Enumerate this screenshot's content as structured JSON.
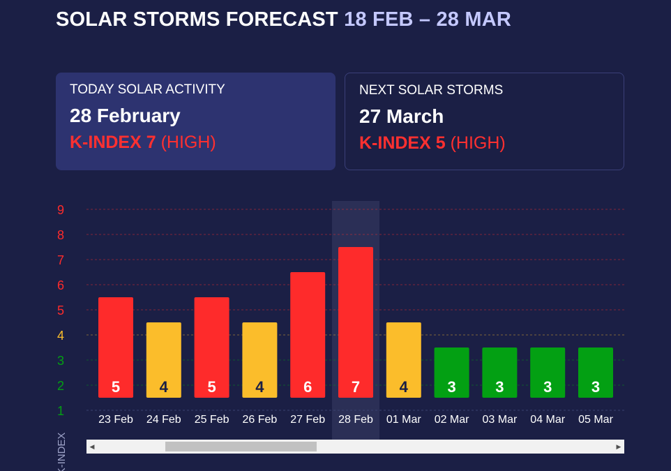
{
  "header": {
    "title": "SOLAR STORMS FORECAST",
    "range": "18 FEB – 28 MAR"
  },
  "today": {
    "label": "TODAY SOLAR ACTIVITY",
    "date": "28 February",
    "kindex": "K-INDEX 7",
    "level": "(HIGH)"
  },
  "next": {
    "label": "NEXT SOLAR STORMS",
    "date": "27 March",
    "kindex": "K-INDEX 5",
    "level": "(HIGH)"
  },
  "colors": {
    "high": "#fe2b2b",
    "moderate": "#fbbd2b",
    "low": "#03a013",
    "background": "#1b1f45",
    "highlight": "#2b2f56"
  },
  "chart_data": {
    "type": "bar",
    "ylabel": "K-INDEX",
    "ylim": [
      1,
      9
    ],
    "yticks": [
      1,
      2,
      3,
      4,
      5,
      6,
      7,
      8,
      9
    ],
    "grid": true,
    "highlighted_category": "28 Feb",
    "categories": [
      "23 Feb",
      "24 Feb",
      "25 Feb",
      "26 Feb",
      "27 Feb",
      "28 Feb",
      "01 Mar",
      "02 Mar",
      "03 Mar",
      "04 Mar",
      "05 Mar"
    ],
    "values": [
      5,
      4,
      5,
      4,
      6,
      7,
      4,
      3,
      3,
      3,
      3
    ]
  },
  "scrollbar": {
    "left_arrow": "◀",
    "right_arrow": "▶"
  }
}
